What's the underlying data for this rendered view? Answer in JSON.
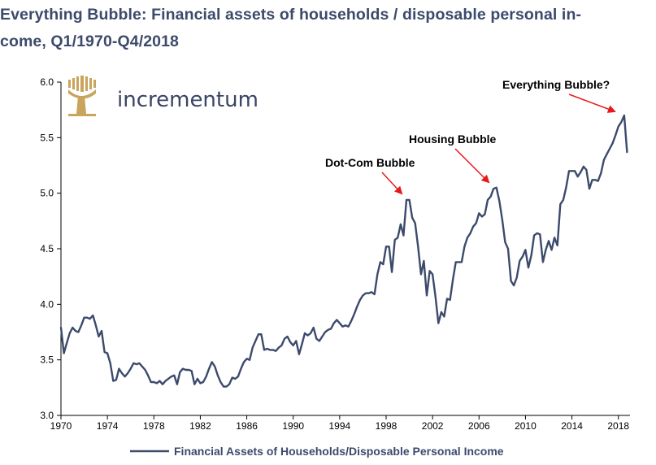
{
  "title": "Everything Bubble: Financial assets of households / disposable personal in-come, Q1/1970-Q4/2018",
  "title_lines": [
    "Everything Bubble: Financial assets of households / disposable personal in-",
    "come, Q1/1970-Q4/2018"
  ],
  "logo": {
    "text": "incrementum",
    "color": "#c9a45c"
  },
  "colors": {
    "line": "#3c4a6b",
    "arrow": "#e8191b",
    "axis": "#000000"
  },
  "chart_data": {
    "type": "line",
    "title": "Everything Bubble: Financial assets of households / disposable personal in-come, Q1/1970-Q4/2018",
    "xlabel": "",
    "ylabel": "",
    "xlim": [
      1970,
      2019
    ],
    "ylim": [
      3.0,
      6.0
    ],
    "grid": false,
    "legend_position": "bottom",
    "x_ticks": [
      1970,
      1974,
      1978,
      1982,
      1986,
      1990,
      1994,
      1998,
      2002,
      2006,
      2010,
      2014,
      2018
    ],
    "y_ticks": [
      "3.0",
      "3.5",
      "4.0",
      "4.5",
      "5.0",
      "5.5",
      "6.0"
    ],
    "series": [
      {
        "name": "Financial Assets of Households/Disposable Personal Income",
        "color": "#3c4a6b",
        "points": [
          [
            1970.0,
            3.79
          ],
          [
            1970.25,
            3.56
          ],
          [
            1970.5,
            3.65
          ],
          [
            1970.75,
            3.74
          ],
          [
            1971.0,
            3.79
          ],
          [
            1971.25,
            3.76
          ],
          [
            1971.5,
            3.75
          ],
          [
            1971.75,
            3.81
          ],
          [
            1972.0,
            3.88
          ],
          [
            1972.25,
            3.88
          ],
          [
            1972.5,
            3.87
          ],
          [
            1972.75,
            3.9
          ],
          [
            1973.0,
            3.81
          ],
          [
            1973.25,
            3.71
          ],
          [
            1973.5,
            3.76
          ],
          [
            1973.75,
            3.57
          ],
          [
            1974.0,
            3.56
          ],
          [
            1974.25,
            3.47
          ],
          [
            1974.5,
            3.31
          ],
          [
            1974.75,
            3.32
          ],
          [
            1975.0,
            3.42
          ],
          [
            1975.25,
            3.38
          ],
          [
            1975.5,
            3.35
          ],
          [
            1975.75,
            3.38
          ],
          [
            1976.0,
            3.42
          ],
          [
            1976.25,
            3.47
          ],
          [
            1976.5,
            3.46
          ],
          [
            1976.75,
            3.47
          ],
          [
            1977.0,
            3.44
          ],
          [
            1977.25,
            3.41
          ],
          [
            1977.5,
            3.36
          ],
          [
            1977.75,
            3.3
          ],
          [
            1978.0,
            3.3
          ],
          [
            1978.25,
            3.29
          ],
          [
            1978.5,
            3.31
          ],
          [
            1978.75,
            3.28
          ],
          [
            1979.0,
            3.31
          ],
          [
            1979.25,
            3.33
          ],
          [
            1979.5,
            3.35
          ],
          [
            1979.75,
            3.36
          ],
          [
            1980.0,
            3.28
          ],
          [
            1980.25,
            3.39
          ],
          [
            1980.5,
            3.42
          ],
          [
            1980.75,
            3.41
          ],
          [
            1981.0,
            3.41
          ],
          [
            1981.25,
            3.4
          ],
          [
            1981.5,
            3.28
          ],
          [
            1981.75,
            3.33
          ],
          [
            1982.0,
            3.29
          ],
          [
            1982.25,
            3.3
          ],
          [
            1982.5,
            3.35
          ],
          [
            1982.75,
            3.42
          ],
          [
            1983.0,
            3.48
          ],
          [
            1983.25,
            3.44
          ],
          [
            1983.5,
            3.36
          ],
          [
            1983.75,
            3.3
          ],
          [
            1984.0,
            3.26
          ],
          [
            1984.25,
            3.26
          ],
          [
            1984.5,
            3.28
          ],
          [
            1984.75,
            3.34
          ],
          [
            1985.0,
            3.33
          ],
          [
            1985.25,
            3.35
          ],
          [
            1985.5,
            3.42
          ],
          [
            1985.75,
            3.48
          ],
          [
            1986.0,
            3.51
          ],
          [
            1986.25,
            3.5
          ],
          [
            1986.5,
            3.61
          ],
          [
            1986.75,
            3.67
          ],
          [
            1987.0,
            3.73
          ],
          [
            1987.25,
            3.73
          ],
          [
            1987.5,
            3.59
          ],
          [
            1987.75,
            3.6
          ],
          [
            1988.0,
            3.59
          ],
          [
            1988.25,
            3.59
          ],
          [
            1988.5,
            3.58
          ],
          [
            1988.75,
            3.61
          ],
          [
            1989.0,
            3.63
          ],
          [
            1989.25,
            3.69
          ],
          [
            1989.5,
            3.71
          ],
          [
            1989.75,
            3.66
          ],
          [
            1990.0,
            3.63
          ],
          [
            1990.25,
            3.67
          ],
          [
            1990.5,
            3.55
          ],
          [
            1990.75,
            3.64
          ],
          [
            1991.0,
            3.74
          ],
          [
            1991.25,
            3.72
          ],
          [
            1991.5,
            3.74
          ],
          [
            1991.75,
            3.79
          ],
          [
            1992.0,
            3.69
          ],
          [
            1992.25,
            3.67
          ],
          [
            1992.5,
            3.71
          ],
          [
            1992.75,
            3.75
          ],
          [
            1993.0,
            3.77
          ],
          [
            1993.25,
            3.78
          ],
          [
            1993.5,
            3.83
          ],
          [
            1993.75,
            3.86
          ],
          [
            1994.0,
            3.83
          ],
          [
            1994.25,
            3.8
          ],
          [
            1994.5,
            3.81
          ],
          [
            1994.75,
            3.8
          ],
          [
            1995.0,
            3.85
          ],
          [
            1995.25,
            3.91
          ],
          [
            1995.5,
            3.98
          ],
          [
            1995.75,
            4.04
          ],
          [
            1996.0,
            4.08
          ],
          [
            1996.25,
            4.1
          ],
          [
            1996.5,
            4.1
          ],
          [
            1996.75,
            4.11
          ],
          [
            1997.0,
            4.09
          ],
          [
            1997.25,
            4.27
          ],
          [
            1997.5,
            4.38
          ],
          [
            1997.75,
            4.36
          ],
          [
            1998.0,
            4.52
          ],
          [
            1998.25,
            4.52
          ],
          [
            1998.5,
            4.29
          ],
          [
            1998.75,
            4.58
          ],
          [
            1999.0,
            4.6
          ],
          [
            1999.25,
            4.72
          ],
          [
            1999.5,
            4.62
          ],
          [
            1999.75,
            4.94
          ],
          [
            2000.0,
            4.94
          ],
          [
            2000.25,
            4.78
          ],
          [
            2000.5,
            4.73
          ],
          [
            2000.75,
            4.52
          ],
          [
            2001.0,
            4.27
          ],
          [
            2001.25,
            4.39
          ],
          [
            2001.5,
            4.08
          ],
          [
            2001.75,
            4.3
          ],
          [
            2002.0,
            4.27
          ],
          [
            2002.25,
            4.07
          ],
          [
            2002.5,
            3.83
          ],
          [
            2002.75,
            3.93
          ],
          [
            2003.0,
            3.89
          ],
          [
            2003.25,
            4.05
          ],
          [
            2003.5,
            4.04
          ],
          [
            2003.75,
            4.22
          ],
          [
            2004.0,
            4.38
          ],
          [
            2004.25,
            4.38
          ],
          [
            2004.5,
            4.38
          ],
          [
            2004.75,
            4.52
          ],
          [
            2005.0,
            4.6
          ],
          [
            2005.25,
            4.64
          ],
          [
            2005.5,
            4.7
          ],
          [
            2005.75,
            4.73
          ],
          [
            2006.0,
            4.82
          ],
          [
            2006.25,
            4.79
          ],
          [
            2006.5,
            4.81
          ],
          [
            2006.75,
            4.94
          ],
          [
            2007.0,
            4.97
          ],
          [
            2007.25,
            5.04
          ],
          [
            2007.5,
            5.05
          ],
          [
            2007.75,
            4.93
          ],
          [
            2008.0,
            4.76
          ],
          [
            2008.25,
            4.56
          ],
          [
            2008.5,
            4.5
          ],
          [
            2008.75,
            4.21
          ],
          [
            2009.0,
            4.17
          ],
          [
            2009.25,
            4.24
          ],
          [
            2009.5,
            4.39
          ],
          [
            2009.75,
            4.43
          ],
          [
            2010.0,
            4.49
          ],
          [
            2010.25,
            4.33
          ],
          [
            2010.5,
            4.44
          ],
          [
            2010.75,
            4.62
          ],
          [
            2011.0,
            4.64
          ],
          [
            2011.25,
            4.63
          ],
          [
            2011.5,
            4.38
          ],
          [
            2011.75,
            4.49
          ],
          [
            2012.0,
            4.57
          ],
          [
            2012.25,
            4.49
          ],
          [
            2012.5,
            4.6
          ],
          [
            2012.75,
            4.53
          ],
          [
            2013.0,
            4.9
          ],
          [
            2013.25,
            4.94
          ],
          [
            2013.5,
            5.05
          ],
          [
            2013.75,
            5.2
          ],
          [
            2014.0,
            5.2
          ],
          [
            2014.25,
            5.2
          ],
          [
            2014.5,
            5.15
          ],
          [
            2014.75,
            5.19
          ],
          [
            2015.0,
            5.24
          ],
          [
            2015.25,
            5.21
          ],
          [
            2015.5,
            5.04
          ],
          [
            2015.75,
            5.12
          ],
          [
            2016.0,
            5.12
          ],
          [
            2016.25,
            5.11
          ],
          [
            2016.5,
            5.18
          ],
          [
            2016.75,
            5.3
          ],
          [
            2017.0,
            5.35
          ],
          [
            2017.25,
            5.4
          ],
          [
            2017.5,
            5.45
          ],
          [
            2017.75,
            5.52
          ],
          [
            2018.0,
            5.6
          ],
          [
            2018.25,
            5.64
          ],
          [
            2018.5,
            5.7
          ],
          [
            2018.75,
            5.37
          ]
        ]
      }
    ],
    "annotations": [
      {
        "text": "Dot-Com Bubble",
        "x": 2000.0,
        "y": 4.94
      },
      {
        "text": "Housing Bubble",
        "x": 2007.5,
        "y": 5.05
      },
      {
        "text": "Everything Bubble?",
        "x": 2018.5,
        "y": 5.7
      }
    ]
  }
}
